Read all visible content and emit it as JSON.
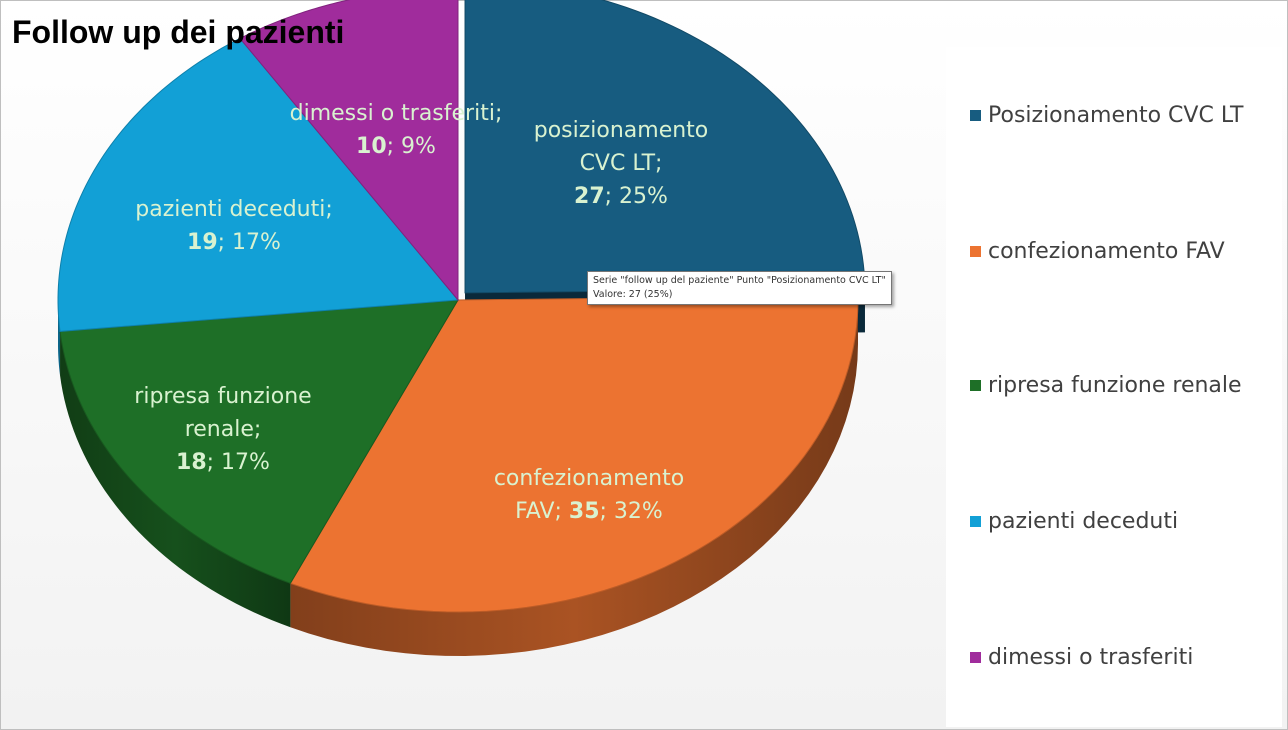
{
  "chart_data": {
    "type": "pie",
    "title": "Follow up dei pazienti",
    "labels": [
      "Posizionamento CVC LT",
      "confezionamento FAV",
      "ripresa funzione renale",
      "pazienti deceduti",
      "dimessi o trasferiti"
    ],
    "values": [
      27,
      35,
      18,
      19,
      10
    ],
    "percentages": [
      "25%",
      "32%",
      "17%",
      "17%",
      "9%"
    ],
    "data_label_names": [
      "posizionamento CVC LT;",
      "confezionamento FAV;",
      "ripresa funzione renale;",
      "pazienti deceduti;",
      "dimessi o trasferiti;"
    ],
    "colors": [
      "#175c80",
      "#ec7331",
      "#1e6f27",
      "#12a0d6",
      "#a02c9c"
    ],
    "legend_position": "right",
    "exploded": "Posizionamento CVC LT",
    "style": "3d-pie"
  },
  "tooltip": {
    "line1": "Serie \"follow up del paziente\" Punto \"Posizionamento CVC LT\"",
    "line2": "Valore: 27 (25%)"
  }
}
